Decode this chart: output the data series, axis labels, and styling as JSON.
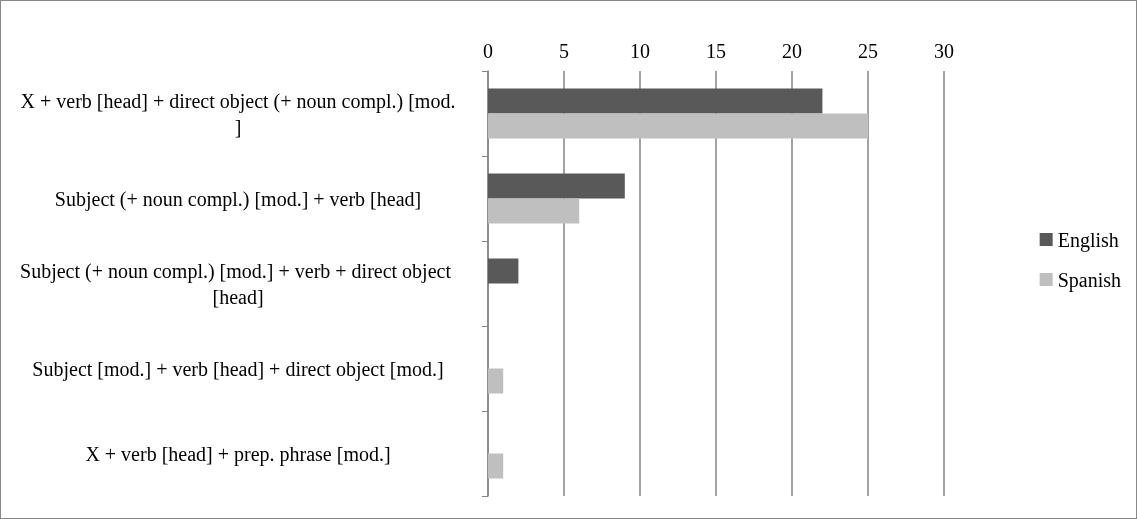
{
  "chart_data": {
    "type": "bar",
    "orientation": "horizontal",
    "categories": [
      "X + verb [head] + direct object (+ noun compl.) [mod.]",
      "Subject (+ noun compl.) [mod.] + verb [head]",
      "Subject (+ noun compl.) [mod.] + verb + direct object [head]",
      "Subject [mod.] + verb [head] + direct object [mod.]",
      "X + verb [head] + prep. phrase [mod.]"
    ],
    "series": [
      {
        "name": "English",
        "color": "#595959",
        "values": [
          22,
          9,
          2,
          0,
          0
        ]
      },
      {
        "name": "Spanish",
        "color": "#bfbfbf",
        "values": [
          25,
          6,
          0,
          1,
          1
        ]
      }
    ],
    "xlim": [
      0,
      30
    ],
    "xticks": [
      0,
      5,
      10,
      15,
      20,
      25,
      30
    ],
    "grid": "x",
    "legend": "right"
  }
}
